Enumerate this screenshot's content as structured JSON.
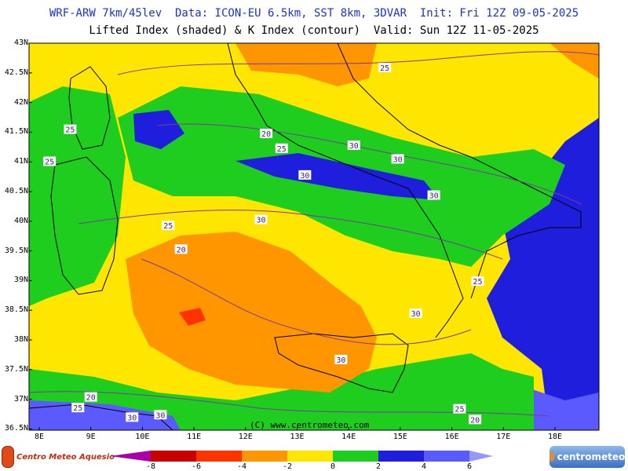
{
  "header": {
    "line1": "WRF-ARW 7km/45lev  Data: ICON-EU 6.5km, SST 8km, 3DVAR  Init: Fri 12Z 09-05-2025",
    "line2": "Lifted Index (shaded) & K Index (contour)  Valid: Sun 12Z 11-05-2025"
  },
  "axes": {
    "latitudes": [
      "43N",
      "42.5N",
      "42N",
      "41.5N",
      "41N",
      "40.5N",
      "40N",
      "39.5N",
      "39N",
      "38.5N",
      "38N",
      "37.5N",
      "37N",
      "36.5N"
    ],
    "longitudes": [
      "8E",
      "9E",
      "10E",
      "11E",
      "12E",
      "13E",
      "14E",
      "15E",
      "16E",
      "17E",
      "18E"
    ]
  },
  "contour_labels": [
    {
      "text": "25",
      "lon": 14.7,
      "lat": 42.59
    },
    {
      "text": "25",
      "lon": 8.6,
      "lat": 41.55
    },
    {
      "text": "20",
      "lon": 12.4,
      "lat": 41.48
    },
    {
      "text": "25",
      "lon": 12.7,
      "lat": 41.23
    },
    {
      "text": "30",
      "lon": 14.1,
      "lat": 41.28
    },
    {
      "text": "30",
      "lon": 14.95,
      "lat": 41.05
    },
    {
      "text": "25",
      "lon": 8.2,
      "lat": 41.01
    },
    {
      "text": "30",
      "lon": 13.15,
      "lat": 40.78
    },
    {
      "text": "30",
      "lon": 15.65,
      "lat": 40.44
    },
    {
      "text": "30",
      "lon": 12.3,
      "lat": 40.03
    },
    {
      "text": "25",
      "lon": 10.5,
      "lat": 39.93
    },
    {
      "text": "20",
      "lon": 10.75,
      "lat": 39.53
    },
    {
      "text": "25",
      "lon": 16.5,
      "lat": 38.99
    },
    {
      "text": "30",
      "lon": 15.3,
      "lat": 38.45
    },
    {
      "text": "30",
      "lon": 13.85,
      "lat": 37.67
    },
    {
      "text": "20",
      "lon": 9.0,
      "lat": 37.04
    },
    {
      "text": "25",
      "lon": 8.75,
      "lat": 36.86
    },
    {
      "text": "30",
      "lon": 9.8,
      "lat": 36.7
    },
    {
      "text": "30",
      "lon": 10.35,
      "lat": 36.74
    },
    {
      "text": "25",
      "lon": 16.15,
      "lat": 36.84
    },
    {
      "text": "20",
      "lon": 16.45,
      "lat": 36.66
    }
  ],
  "credit": "(C) www.centrometeo.com",
  "logos": {
    "left": "Centro Meteo Aquesio",
    "right": "centrometeo"
  },
  "colorbar": {
    "ticks": [
      "-8",
      "-6",
      "-4",
      "-2",
      "0",
      "2",
      "4",
      "6"
    ],
    "colors": [
      "#aa00aa",
      "#c80000",
      "#ff3200",
      "#ff9600",
      "#ffe600",
      "#1ecd1e",
      "#1e1edc",
      "#5a5aff",
      "#9696ff"
    ]
  },
  "field_colors": {
    "yellow": "#ffe600",
    "green": "#1ecd1e",
    "orange": "#ff9600",
    "red": "#ff3200",
    "blue": "#1e1edc",
    "lightblue": "#5a5aff"
  }
}
